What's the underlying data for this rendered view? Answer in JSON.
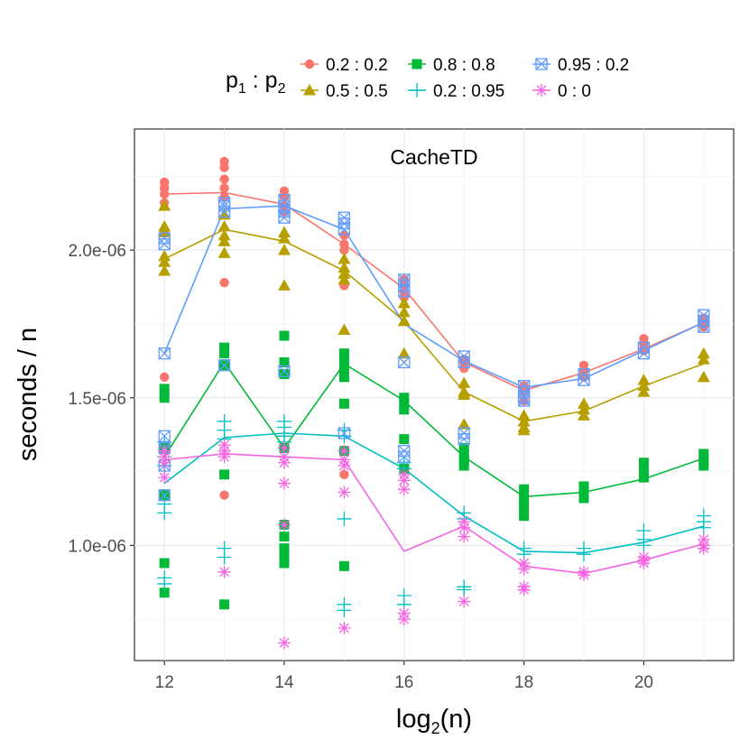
{
  "chart_data": {
    "type": "line",
    "title": "CacheTD",
    "xlabel": "log",
    "xlabel_sub": "2",
    "xlabel_arg": "(n)",
    "ylabel": "seconds / n",
    "xlim": [
      11.5,
      21.5
    ],
    "ylim": [
      6.1e-07,
      2.41e-06
    ],
    "x_ticks": [
      12,
      14,
      16,
      18,
      20
    ],
    "x_tick_labels": [
      "12",
      "14",
      "16",
      "18",
      "20"
    ],
    "y_ticks": [
      1e-06,
      1.5e-06,
      2e-06
    ],
    "y_tick_labels": [
      "1.0e-06",
      "1.5e-06",
      "2.0e-06"
    ],
    "grid": true,
    "legend": {
      "title_p1": "p",
      "title_sub1": "1",
      "title_sep": " : ",
      "title_p2": "p",
      "title_sub2": "2",
      "placement": "top"
    },
    "x": [
      12,
      13,
      14,
      15,
      16,
      17,
      18,
      19,
      20,
      21
    ],
    "series": [
      {
        "name": "0.2 : 0.2",
        "color": "#F8766D",
        "marker": "circle",
        "values": [
          2.19e-06,
          2.195e-06,
          2.155e-06,
          2.02e-06,
          1.87e-06,
          1.62e-06,
          1.525e-06,
          1.585e-06,
          1.665e-06,
          1.755e-06
        ],
        "points": [
          [
            [
              2.23e-06,
              2.21e-06,
              2.19e-06,
              2.16e-06,
              2.06e-06,
              1.57e-06
            ]
          ],
          [
            [
              2.3e-06,
              2.28e-06,
              2.24e-06,
              2.21e-06,
              2.18e-06,
              1.89e-06,
              1.17e-06
            ]
          ],
          [
            [
              2.2e-06,
              2.18e-06,
              2.15e-06,
              2.13e-06
            ]
          ],
          [
            [
              2.05e-06,
              2.02e-06,
              2e-06,
              1.88e-06,
              1.24e-06
            ]
          ],
          [
            [
              1.9e-06,
              1.88e-06,
              1.86e-06,
              1.84e-06
            ]
          ],
          [
            [
              1.63e-06,
              1.62e-06,
              1.6e-06
            ]
          ],
          [
            [
              1.54e-06,
              1.52e-06,
              1.49e-06
            ]
          ],
          [
            [
              1.61e-06,
              1.59e-06,
              1.57e-06
            ]
          ],
          [
            [
              1.7e-06,
              1.68e-06,
              1.66e-06
            ]
          ],
          [
            [
              1.77e-06,
              1.75e-06,
              1.74e-06
            ]
          ]
        ]
      },
      {
        "name": "0.5 : 0.5",
        "color": "#B79F00",
        "marker": "triangle",
        "values": [
          1.97e-06,
          2.07e-06,
          2.03e-06,
          1.93e-06,
          1.76e-06,
          1.52e-06,
          1.42e-06,
          1.455e-06,
          1.54e-06,
          1.615e-06
        ],
        "points": [
          [
            [
              2.15e-06,
              2.08e-06,
              2.06e-06,
              1.98e-06,
              1.96e-06,
              1.93e-06
            ]
          ],
          [
            [
              2.12e-06,
              2.08e-06,
              2.05e-06,
              2.03e-06,
              1.99e-06
            ]
          ],
          [
            [
              2.06e-06,
              2.04e-06,
              2e-06,
              1.88e-06
            ]
          ],
          [
            [
              1.97e-06,
              1.94e-06,
              1.92e-06,
              1.9e-06,
              1.73e-06
            ]
          ],
          [
            [
              1.82e-06,
              1.79e-06,
              1.76e-06,
              1.65e-06
            ]
          ],
          [
            [
              1.55e-06,
              1.52e-06,
              1.51e-06,
              1.41e-06
            ]
          ],
          [
            [
              1.44e-06,
              1.42e-06,
              1.4e-06,
              1.39e-06
            ]
          ],
          [
            [
              1.48e-06,
              1.46e-06,
              1.44e-06
            ]
          ],
          [
            [
              1.56e-06,
              1.54e-06,
              1.52e-06
            ]
          ],
          [
            [
              1.65e-06,
              1.63e-06,
              1.57e-06
            ]
          ]
        ]
      },
      {
        "name": "0.8 : 0.8",
        "color": "#00BA38",
        "marker": "square",
        "values": [
          1.3e-06,
          1.62e-06,
          1.33e-06,
          1.615e-06,
          1.49e-06,
          1.3e-06,
          1.165e-06,
          1.18e-06,
          1.225e-06,
          1.295e-06
        ],
        "points": [
          [
            [
              1.53e-06,
              1.5e-06,
              1.33e-06,
              1.17e-06,
              9.4e-07,
              8.4e-07
            ]
          ],
          [
            [
              1.67e-06,
              1.65e-06,
              1.61e-06,
              1.24e-06,
              8e-07
            ]
          ],
          [
            [
              1.71e-06,
              1.62e-06,
              1.58e-06,
              1.33e-06,
              1.07e-06,
              1.03e-06,
              9.9e-07,
              9.6e-07,
              9.4e-07
            ]
          ],
          [
            [
              1.65e-06,
              1.63e-06,
              1.6e-06,
              1.57e-06,
              1.48e-06,
              1.32e-06,
              9.3e-07
            ]
          ],
          [
            [
              1.5e-06,
              1.48e-06,
              1.46e-06,
              1.36e-06,
              1.26e-06
            ]
          ],
          [
            [
              1.33e-06,
              1.31e-06,
              1.29e-06,
              1.27e-06
            ]
          ],
          [
            [
              1.19e-06,
              1.16e-06,
              1.13e-06,
              1.1e-06
            ]
          ],
          [
            [
              1.2e-06,
              1.18e-06,
              1.16e-06
            ]
          ],
          [
            [
              1.28e-06,
              1.25e-06,
              1.23e-06
            ]
          ],
          [
            [
              1.31e-06,
              1.29e-06,
              1.27e-06
            ]
          ]
        ]
      },
      {
        "name": "0.2 : 0.95",
        "color": "#00BFC4",
        "marker": "plus",
        "values": [
          1.21e-06,
          1.365e-06,
          1.38e-06,
          1.37e-06,
          1.26e-06,
          1.1e-06,
          9.8e-07,
          9.75e-07,
          1.01e-06,
          1.065e-06
        ],
        "points": [
          [
            [
              1.35e-06,
              1.3e-06,
              1.27e-06,
              1.14e-06,
              1.11e-06,
              8.9e-07,
              8.7e-07
            ]
          ],
          [
            [
              1.42e-06,
              1.39e-06,
              1.36e-06,
              9.9e-07,
              9.6e-07
            ]
          ],
          [
            [
              1.42e-06,
              1.4e-06,
              1.37e-06,
              1.35e-06
            ]
          ],
          [
            [
              1.39e-06,
              1.37e-06,
              1.09e-06,
              8e-07,
              7.8e-07
            ]
          ],
          [
            [
              1.28e-06,
              1.26e-06,
              8.3e-07,
              8e-07
            ]
          ],
          [
            [
              1.11e-06,
              1.09e-06,
              8.6e-07,
              8.5e-07
            ]
          ],
          [
            [
              9.9e-07,
              9.7e-07
            ]
          ],
          [
            [
              9.9e-07,
              9.7e-07
            ]
          ],
          [
            [
              1.05e-06,
              1.02e-06,
              1e-06
            ]
          ],
          [
            [
              1.1e-06,
              1.08e-06,
              1.06e-06
            ]
          ]
        ]
      },
      {
        "name": "0.95 : 0.2",
        "color": "#619CFF",
        "marker": "boxx",
        "values": [
          1.65e-06,
          2.14e-06,
          2.15e-06,
          2.07e-06,
          1.75e-06,
          1.625e-06,
          1.535e-06,
          1.565e-06,
          1.66e-06,
          1.755e-06
        ],
        "points": [
          [
            [
              2.04e-06,
              2.02e-06,
              1.65e-06,
              1.37e-06,
              1.33e-06,
              1.27e-06,
              1.17e-06
            ]
          ],
          [
            [
              2.16e-06,
              2.15e-06,
              2.13e-06,
              1.61e-06
            ]
          ],
          [
            [
              2.17e-06,
              2.15e-06,
              2.13e-06,
              2.11e-06,
              1.59e-06
            ]
          ],
          [
            [
              2.11e-06,
              2.09e-06,
              2.07e-06,
              1.38e-06
            ]
          ],
          [
            [
              1.9e-06,
              1.88e-06,
              1.86e-06,
              1.62e-06,
              1.32e-06,
              1.3e-06
            ]
          ],
          [
            [
              1.64e-06,
              1.62e-06,
              1.38e-06,
              1.36e-06
            ]
          ],
          [
            [
              1.54e-06,
              1.52e-06,
              1.5e-06,
              1.49e-06
            ]
          ],
          [
            [
              1.58e-06,
              1.56e-06
            ]
          ],
          [
            [
              1.67e-06,
              1.65e-06
            ]
          ],
          [
            [
              1.78e-06,
              1.76e-06,
              1.74e-06
            ]
          ]
        ]
      },
      {
        "name": "0 : 0",
        "color": "#F564E3",
        "marker": "star",
        "values": [
          1.29e-06,
          1.31e-06,
          1.3e-06,
          1.29e-06,
          9.8e-07,
          1.065e-06,
          9.3e-07,
          9.05e-07,
          9.5e-07,
          1.005e-06
        ],
        "points": [
          [
            [
              1.32e-06,
              1.3e-06,
              1.28e-06,
              1.23e-06
            ]
          ],
          [
            [
              1.34e-06,
              1.32e-06,
              1.3e-06,
              9.1e-07
            ]
          ],
          [
            [
              1.33e-06,
              1.3e-06,
              1.28e-06,
              1.21e-06,
              1.07e-06,
              6.7e-07
            ]
          ],
          [
            [
              1.32e-06,
              1.29e-06,
              1.27e-06,
              1.18e-06,
              7.2e-07
            ]
          ],
          [
            [
              1.24e-06,
              1.22e-06,
              1.19e-06,
              7.7e-07,
              7.5e-07
            ]
          ],
          [
            [
              1.08e-06,
              1.06e-06,
              1.03e-06,
              8.1e-07
            ]
          ],
          [
            [
              9.4e-07,
              9.2e-07,
              8.6e-07,
              8.5e-07
            ]
          ],
          [
            [
              9.1e-07,
              9e-07
            ]
          ],
          [
            [
              9.6e-07,
              9.5e-07,
              9.4e-07
            ]
          ],
          [
            [
              1.02e-06,
              1e-06,
              9.9e-07
            ]
          ]
        ]
      }
    ]
  }
}
